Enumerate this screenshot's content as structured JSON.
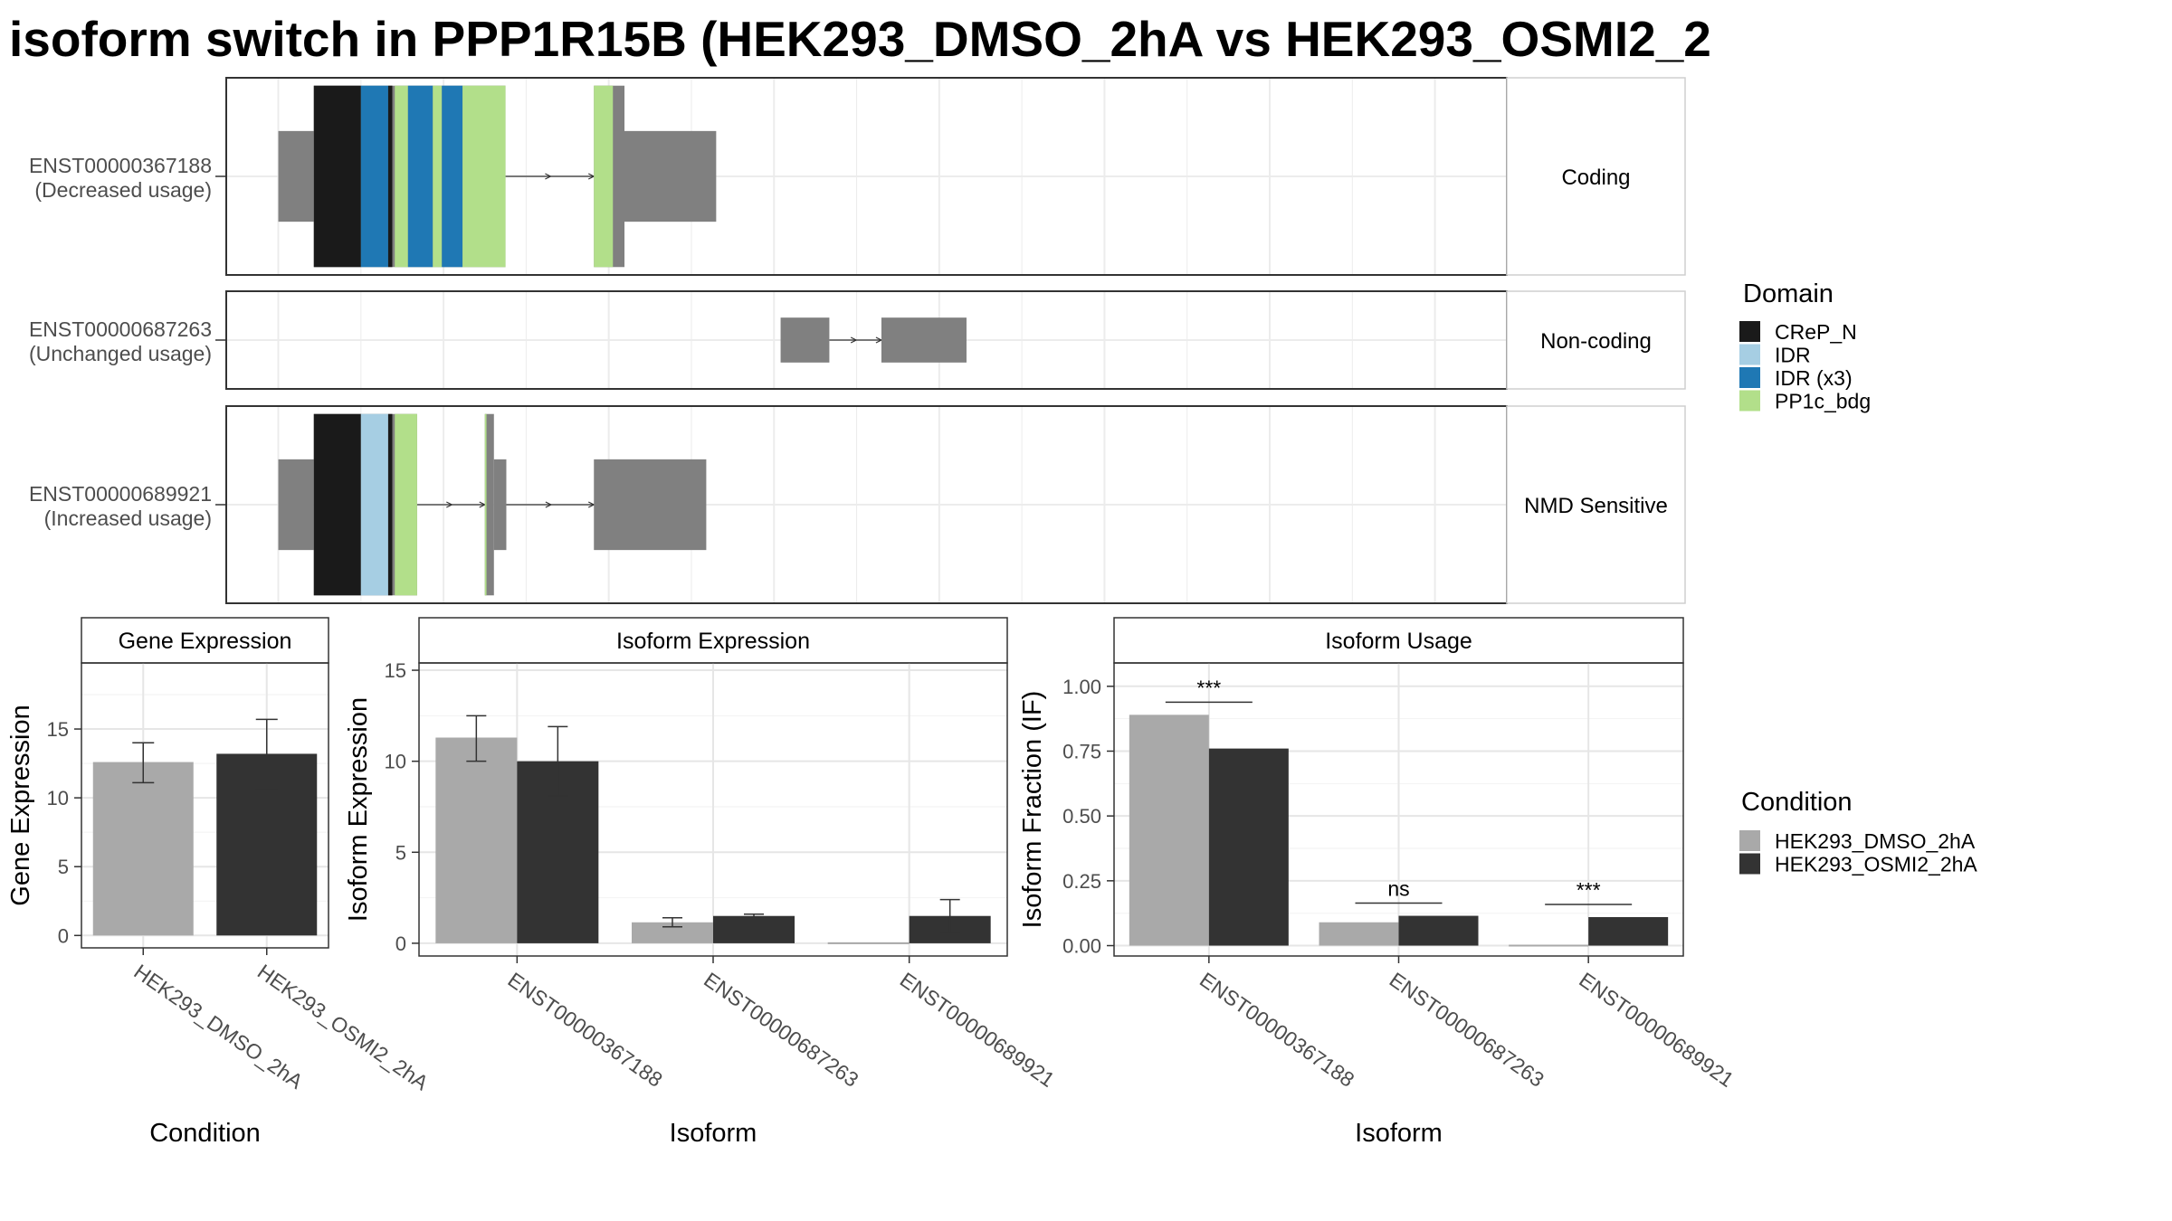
{
  "title": "isoform switch in PPP1R15B (HEK293_DMSO_2hA vs HEK293_OSMI2_2",
  "chart_data": [
    {
      "type": "isoform_structure",
      "tracks": [
        {
          "id": "ENST00000367188",
          "usage": "(Decreased usage)",
          "category": "Coding",
          "utr": [
            [
              200,
              243
            ],
            [
              605,
              730
            ]
          ],
          "cds": [
            [
              243,
              475
            ],
            [
              582,
              619
            ]
          ],
          "introns": [
            [
              475,
              582
            ]
          ],
          "domains": [
            {
              "domain": "CReP_N",
              "start": 243,
              "end": 300
            },
            {
              "domain": "IDR (x3)",
              "start": 300,
              "end": 333
            },
            {
              "domain": "CReP_N",
              "start": 333,
              "end": 338
            },
            {
              "domain": "PP1c_bdg",
              "start": 341,
              "end": 357
            },
            {
              "domain": "IDR (x3)",
              "start": 357,
              "end": 387
            },
            {
              "domain": "PP1c_bdg",
              "start": 387,
              "end": 398
            },
            {
              "domain": "IDR (x3)",
              "start": 398,
              "end": 423
            },
            {
              "domain": "PP1c_bdg",
              "start": 423,
              "end": 475
            },
            {
              "domain": "PP1c_bdg",
              "start": 582,
              "end": 605
            }
          ]
        },
        {
          "id": "ENST00000687263",
          "usage": "(Unchanged usage)",
          "category": "Non-coding",
          "utr": [
            [
              808,
              867
            ],
            [
              930,
              1033
            ]
          ],
          "cds": [],
          "introns": [
            [
              867,
              930
            ]
          ],
          "domains": []
        },
        {
          "id": "ENST00000689921",
          "usage": "(Increased usage)",
          "category": "NMD Sensitive",
          "utr": [
            [
              200,
              243
            ],
            [
              461,
              476
            ],
            [
              582,
              718
            ]
          ],
          "cds": [
            [
              243,
              368
            ],
            [
              450,
              461
            ]
          ],
          "introns": [
            [
              368,
              450
            ],
            [
              476,
              582
            ]
          ],
          "domains": [
            {
              "domain": "CReP_N",
              "start": 243,
              "end": 300
            },
            {
              "domain": "IDR",
              "start": 300,
              "end": 333
            },
            {
              "domain": "CReP_N",
              "start": 333,
              "end": 338
            },
            {
              "domain": "PP1c_bdg",
              "start": 341,
              "end": 368
            },
            {
              "domain": "PP1c_bdg",
              "start": 450,
              "end": 452
            }
          ]
        }
      ],
      "domain_legend": {
        "title": "Domain",
        "items": [
          {
            "label": "CReP_N",
            "color": "#1a1a1a"
          },
          {
            "label": "IDR",
            "color": "#a6cee3"
          },
          {
            "label": "IDR (x3)",
            "color": "#1f78b4"
          },
          {
            "label": "PP1c_bdg",
            "color": "#b2df8a"
          }
        ]
      },
      "colors": {
        "utr": "#808080",
        "intron": "#333333"
      }
    },
    {
      "type": "bar",
      "title": "Gene Expression",
      "xlabel": "Condition",
      "ylabel": "Gene Expression",
      "categories": [
        "HEK293_DMSO_2hA",
        "HEK293_OSMI2_2hA"
      ],
      "values": [
        12.6,
        13.2
      ],
      "error": [
        [
          11.1,
          14.0
        ],
        [
          10.6,
          15.7
        ]
      ],
      "ylim": [
        -0.9,
        19.8
      ],
      "yticks": [
        0,
        5,
        10,
        15
      ],
      "colors": [
        "#a9a9a9",
        "#333333"
      ]
    },
    {
      "type": "bar",
      "title": "Isoform Expression",
      "xlabel": "Isoform",
      "ylabel": "Isoform Expression",
      "categories": [
        "ENST00000367188",
        "ENST00000687263",
        "ENST00000689921"
      ],
      "series": [
        {
          "name": "HEK293_DMSO_2hA",
          "values": [
            11.3,
            1.15,
            0.0
          ],
          "error": [
            [
              10.0,
              12.5
            ],
            [
              0.9,
              1.4
            ],
            [
              0.0,
              0.0
            ]
          ]
        },
        {
          "name": "HEK293_OSMI2_2hA",
          "values": [
            10.0,
            1.5,
            1.5
          ],
          "error": [
            [
              8.1,
              11.9
            ],
            [
              1.4,
              1.6
            ],
            [
              0.6,
              2.4
            ]
          ]
        }
      ],
      "ylim": [
        -0.7,
        15.4
      ],
      "yticks": [
        0,
        5,
        10,
        15
      ]
    },
    {
      "type": "bar",
      "title": "Isoform Usage",
      "xlabel": "Isoform",
      "ylabel": "Isoform Fraction (IF)",
      "categories": [
        "ENST00000367188",
        "ENST00000687263",
        "ENST00000689921"
      ],
      "series": [
        {
          "name": "HEK293_DMSO_2hA",
          "values": [
            0.89,
            0.09,
            0.0
          ]
        },
        {
          "name": "HEK293_OSMI2_2hA",
          "values": [
            0.76,
            0.115,
            0.11
          ]
        }
      ],
      "significance": [
        "***",
        "ns",
        "***"
      ],
      "ylim": [
        -0.04,
        1.09
      ],
      "yticks": [
        "0.00",
        "0.25",
        "0.50",
        "0.75",
        "1.00"
      ]
    }
  ],
  "condition_legend": {
    "title": "Condition",
    "items": [
      {
        "label": "HEK293_DMSO_2hA",
        "color": "#a9a9a9"
      },
      {
        "label": "HEK293_OSMI2_2hA",
        "color": "#333333"
      }
    ]
  }
}
